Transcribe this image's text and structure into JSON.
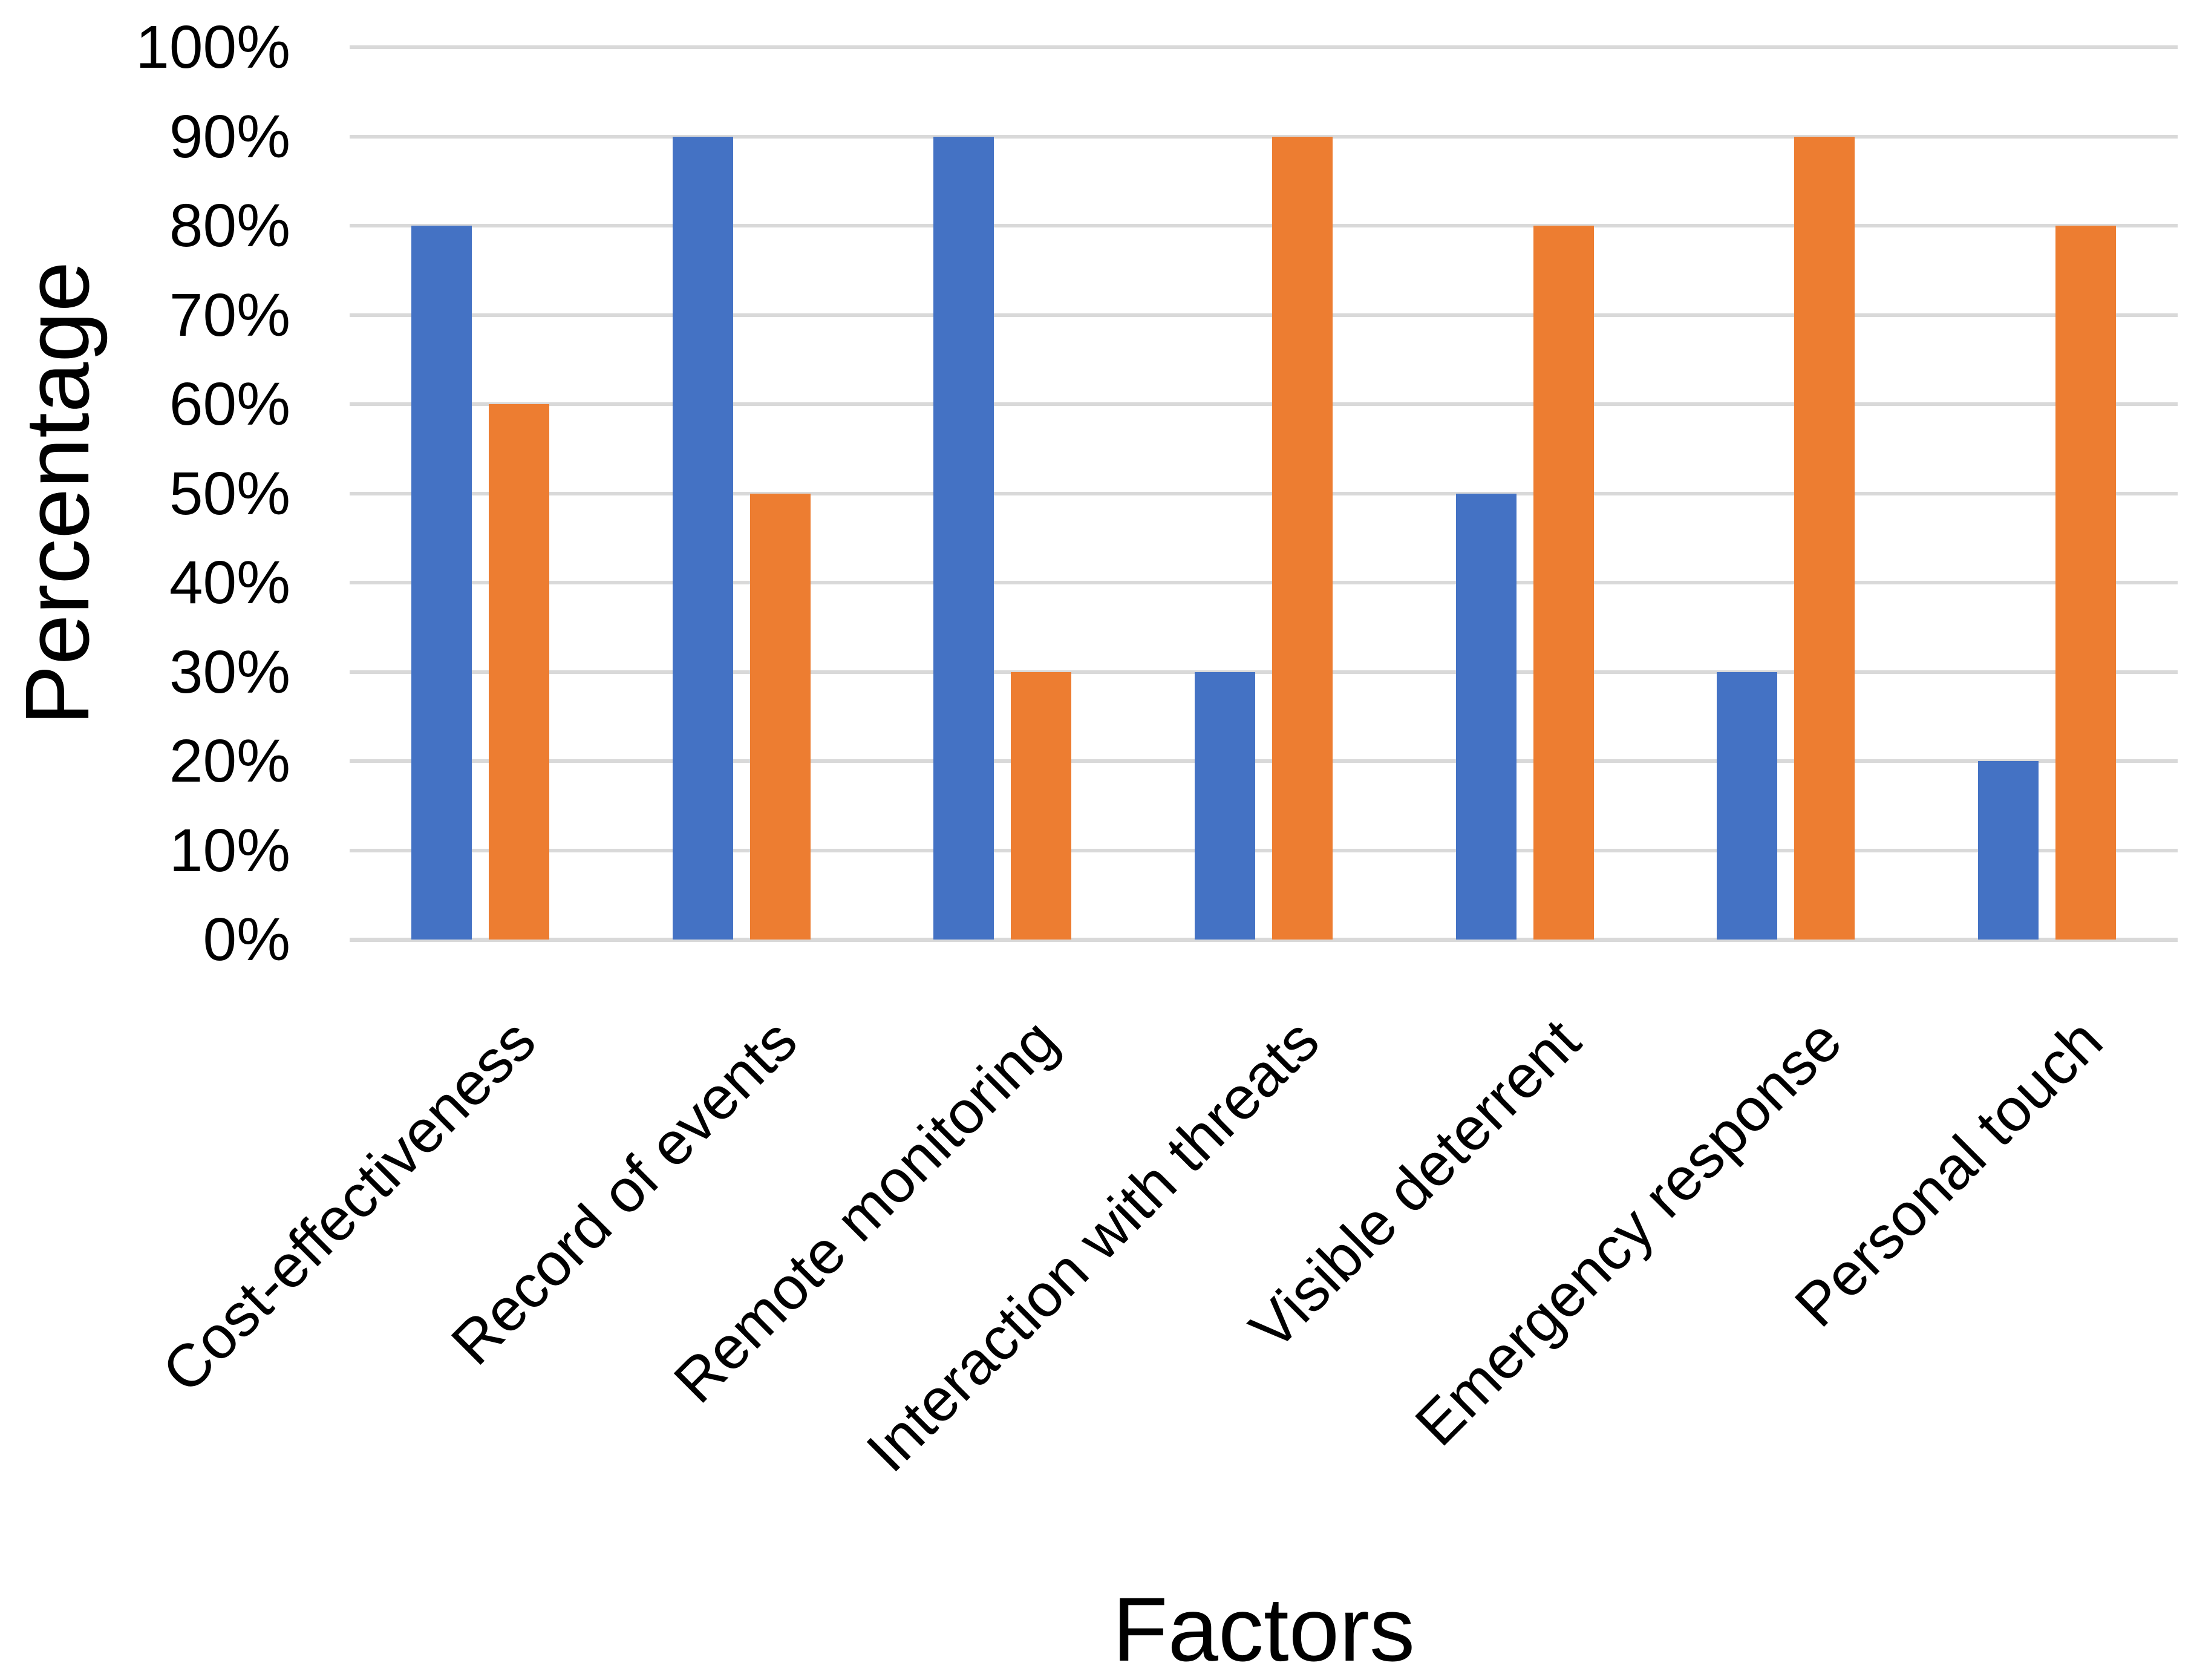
{
  "chart_data": {
    "type": "bar",
    "title": "",
    "xlabel": "Factors",
    "ylabel": "Percentage",
    "categories": [
      "Cost-effectiveness",
      "Record of events",
      "Remote monitoring",
      "Interaction with threats",
      "Visible deterrent",
      "Emergency response",
      "Personal touch"
    ],
    "series": [
      {
        "name": "blue",
        "color": "#4472C4",
        "values": [
          80,
          90,
          90,
          30,
          50,
          30,
          20
        ]
      },
      {
        "name": "orange",
        "color": "#ED7D31",
        "values": [
          60,
          50,
          30,
          90,
          80,
          90,
          80
        ]
      }
    ],
    "ylim": [
      0,
      100
    ],
    "yticks": [
      0,
      10,
      20,
      30,
      40,
      50,
      60,
      70,
      80,
      90,
      100
    ],
    "ytick_labels": [
      "0%",
      "10%",
      "20%",
      "30%",
      "40%",
      "50%",
      "60%",
      "70%",
      "80%",
      "90%",
      "100%"
    ],
    "grid": true,
    "legend_position": "none",
    "gridline_color": "#D9D9D9",
    "background": "#FFFFFF",
    "text_color": "#000000"
  }
}
